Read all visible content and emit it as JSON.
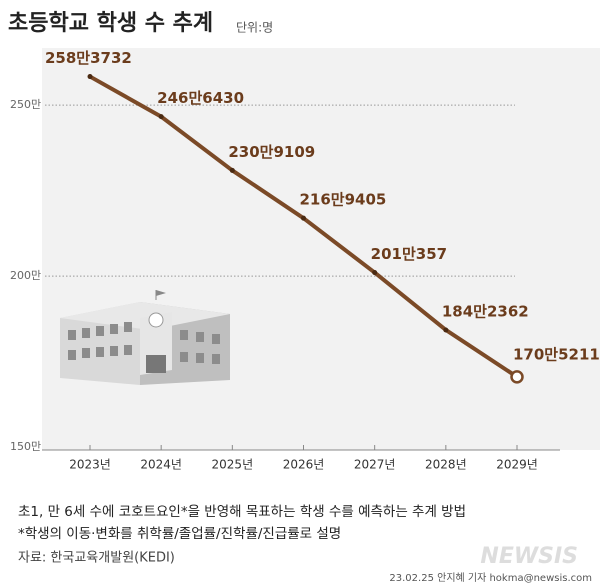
{
  "chart_data": {
    "type": "line",
    "title": "초등학교 학생 수 추계",
    "unit": "단위:명",
    "categories": [
      "2023년",
      "2024년",
      "2025년",
      "2026년",
      "2027년",
      "2028년",
      "2029년"
    ],
    "values": [
      2583732,
      2466430,
      2309109,
      2169405,
      2010357,
      1842362,
      1705211
    ],
    "value_labels": [
      "258만3732",
      "246만6430",
      "230만9109",
      "216만9405",
      "201만357",
      "184만2362",
      "170만5211"
    ],
    "color": "#7b4a27",
    "ylim": [
      1500000,
      2600000
    ],
    "yticks": [
      {
        "value": 1500000,
        "label": "150만"
      },
      {
        "value": 2000000,
        "label": "200만"
      },
      {
        "value": 2500000,
        "label": "250만"
      }
    ],
    "grid": true,
    "notes": [
      "초1, 만 6세 수에 코호트요인*을 반영해 목표하는 학생 수를 예측하는 추계 방법",
      "*학생의 이동·변화를 취학률/졸업률/진학률/진급률로 설명"
    ],
    "source": "자료: 한국교육개발원(KEDI)",
    "credit": "23.02.25 안지혜 기자 hokma@newsis.com",
    "logo": "NEWSIS"
  }
}
